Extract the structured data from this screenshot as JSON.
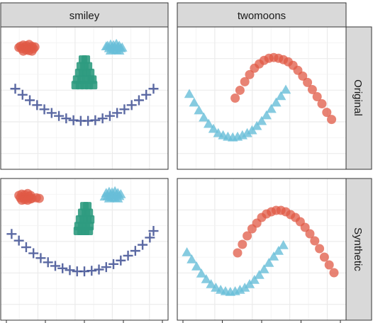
{
  "colors": {
    "strip_fill": "#d9d9d9",
    "cluster_red": "#e05a45",
    "cluster_blue": "#68bed8",
    "cluster_green": "#2f9b7f",
    "cluster_navy": "#3e4f93"
  },
  "facets": {
    "columns": [
      "smiley",
      "twomoons"
    ],
    "rows": [
      "Original",
      "Synthetic"
    ]
  },
  "chart_data": {
    "type": "scatter",
    "xlabel": "",
    "ylabel": "",
    "grid": true,
    "legend": "none",
    "panels": [
      {
        "column": "smiley",
        "row": "Original",
        "xlim": [
          -1.15,
          1.15
        ],
        "ylim": [
          -1.15,
          1.2
        ],
        "series": [
          {
            "color": "#e05a45",
            "shape": "circle",
            "group": "left eye",
            "x": [
              -0.88,
              -0.84,
              -0.8,
              -0.76,
              -0.72,
              -0.86,
              -0.82,
              -0.78,
              -0.74,
              -0.7,
              -0.84,
              -0.8,
              -0.76,
              -0.72,
              -0.9,
              -0.68
            ],
            "y": [
              0.88,
              0.9,
              0.89,
              0.91,
              0.88,
              0.84,
              0.86,
              0.85,
              0.86,
              0.84,
              0.8,
              0.82,
              0.81,
              0.8,
              0.86,
              0.87
            ]
          },
          {
            "color": "#68bed8",
            "shape": "triangle",
            "group": "right eye",
            "x": [
              0.32,
              0.36,
              0.4,
              0.44,
              0.48,
              0.34,
              0.38,
              0.42,
              0.46,
              0.5,
              0.36,
              0.4,
              0.44,
              0.48,
              0.3,
              0.52
            ],
            "y": [
              0.88,
              0.9,
              0.89,
              0.91,
              0.88,
              0.84,
              0.86,
              0.85,
              0.86,
              0.84,
              0.8,
              0.82,
              0.81,
              0.8,
              0.87,
              0.85
            ]
          },
          {
            "color": "#2f9b7f",
            "shape": "square",
            "group": "nose",
            "x": [
              -0.02,
              0.02,
              -0.05,
              0.0,
              0.05,
              -0.07,
              -0.02,
              0.03,
              0.08,
              -0.1,
              -0.04,
              0.02,
              0.08,
              0.11,
              -0.12,
              -0.06,
              0.0,
              0.06,
              0.12
            ],
            "y": [
              0.66,
              0.66,
              0.55,
              0.55,
              0.55,
              0.44,
              0.44,
              0.44,
              0.44,
              0.33,
              0.33,
              0.33,
              0.33,
              0.33,
              0.24,
              0.24,
              0.24,
              0.24,
              0.24
            ]
          },
          {
            "color": "#3e4f93",
            "shape": "plus",
            "group": "mouth",
            "x": [
              -0.95,
              -0.85,
              -0.75,
              -0.65,
              -0.55,
              -0.45,
              -0.35,
              -0.25,
              -0.15,
              -0.05,
              0.05,
              0.15,
              0.25,
              0.35,
              0.45,
              0.55,
              0.65,
              0.75,
              0.85,
              0.95
            ],
            "y": [
              0.18,
              0.08,
              -0.01,
              -0.09,
              -0.16,
              -0.22,
              -0.27,
              -0.31,
              -0.34,
              -0.35,
              -0.35,
              -0.34,
              -0.31,
              -0.27,
              -0.22,
              -0.16,
              -0.09,
              -0.01,
              0.08,
              0.18
            ]
          }
        ]
      },
      {
        "column": "twomoons",
        "row": "Original",
        "xlim": [
          -1.25,
          2.25
        ],
        "ylim": [
          -0.75,
          1.25
        ],
        "series": [
          {
            "color": "#e05a45",
            "shape": "circle",
            "group": "upper moon",
            "x": [
              -0.05,
              0.05,
              0.15,
              0.25,
              0.35,
              0.45,
              0.55,
              0.65,
              0.75,
              0.85,
              0.95,
              1.05,
              1.15,
              1.25,
              1.35,
              1.45,
              1.55,
              1.65,
              1.75,
              1.85,
              1.95
            ],
            "y": [
              0.25,
              0.36,
              0.48,
              0.58,
              0.67,
              0.73,
              0.78,
              0.81,
              0.82,
              0.81,
              0.79,
              0.76,
              0.71,
              0.64,
              0.56,
              0.47,
              0.37,
              0.27,
              0.17,
              0.05,
              -0.05
            ]
          },
          {
            "color": "#68bed8",
            "shape": "triangle",
            "group": "lower moon",
            "x": [
              -1.0,
              -0.9,
              -0.8,
              -0.7,
              -0.6,
              -0.5,
              -0.4,
              -0.3,
              -0.2,
              -0.1,
              0.0,
              0.1,
              0.2,
              0.3,
              0.4,
              0.5,
              0.6,
              0.7,
              0.8,
              0.9,
              1.0
            ],
            "y": [
              0.3,
              0.18,
              0.07,
              -0.03,
              -0.12,
              -0.19,
              -0.25,
              -0.28,
              -0.3,
              -0.31,
              -0.3,
              -0.28,
              -0.25,
              -0.21,
              -0.15,
              -0.08,
              0.0,
              0.09,
              0.18,
              0.27,
              0.36
            ]
          }
        ]
      },
      {
        "column": "smiley",
        "row": "Synthetic",
        "xlim": [
          -1.15,
          1.15
        ],
        "ylim": [
          -1.15,
          1.2
        ],
        "series": [
          {
            "color": "#e05a45",
            "shape": "circle",
            "group": "left eye",
            "x": [
              -0.9,
              -0.86,
              -0.82,
              -0.78,
              -0.74,
              -0.88,
              -0.84,
              -0.8,
              -0.76,
              -0.72,
              -0.86,
              -0.82,
              -0.78,
              -0.74,
              -0.66,
              -0.62
            ],
            "y": [
              0.92,
              0.94,
              0.93,
              0.95,
              0.92,
              0.88,
              0.89,
              0.88,
              0.9,
              0.87,
              0.84,
              0.85,
              0.84,
              0.86,
              0.88,
              0.87
            ]
          },
          {
            "color": "#68bed8",
            "shape": "triangle",
            "group": "right eye",
            "x": [
              0.3,
              0.34,
              0.38,
              0.42,
              0.46,
              0.32,
              0.36,
              0.4,
              0.44,
              0.48,
              0.34,
              0.38,
              0.42,
              0.46,
              0.28,
              0.5
            ],
            "y": [
              0.95,
              0.97,
              0.96,
              0.98,
              0.95,
              0.9,
              0.92,
              0.91,
              0.92,
              0.9,
              0.86,
              0.88,
              0.87,
              0.86,
              0.89,
              0.93
            ]
          },
          {
            "color": "#2f9b7f",
            "shape": "square",
            "group": "nose",
            "x": [
              0.0,
              0.04,
              -0.03,
              0.02,
              0.06,
              -0.06,
              -0.01,
              0.04,
              0.08,
              -0.08,
              -0.03,
              0.02,
              0.07,
              -0.09,
              -0.04,
              0.01,
              0.06
            ],
            "y": [
              0.74,
              0.74,
              0.63,
              0.63,
              0.63,
              0.52,
              0.52,
              0.52,
              0.52,
              0.41,
              0.41,
              0.41,
              0.41,
              0.33,
              0.33,
              0.33,
              0.33
            ]
          },
          {
            "color": "#3e4f93",
            "shape": "plus",
            "group": "mouth",
            "x": [
              -1.0,
              -0.9,
              -0.8,
              -0.7,
              -0.6,
              -0.5,
              -0.4,
              -0.3,
              -0.2,
              -0.1,
              0.0,
              0.1,
              0.2,
              0.3,
              0.4,
              0.5,
              0.6,
              0.7,
              0.8,
              0.9,
              0.95
            ],
            "y": [
              0.28,
              0.17,
              0.06,
              -0.04,
              -0.12,
              -0.19,
              -0.25,
              -0.29,
              -0.32,
              -0.34,
              -0.34,
              -0.33,
              -0.31,
              -0.27,
              -0.22,
              -0.16,
              -0.08,
              0.0,
              0.1,
              0.22,
              0.33
            ]
          }
        ]
      },
      {
        "column": "twomoons",
        "row": "Synthetic",
        "xlim": [
          -1.25,
          2.25
        ],
        "ylim": [
          -0.75,
          1.25
        ],
        "series": [
          {
            "color": "#e05a45",
            "shape": "circle",
            "group": "upper moon",
            "x": [
              0.0,
              0.1,
              0.2,
              0.3,
              0.4,
              0.5,
              0.6,
              0.7,
              0.8,
              0.9,
              1.0,
              1.1,
              1.2,
              1.3,
              1.4,
              1.5,
              1.6,
              1.7,
              1.8,
              1.9,
              2.0
            ],
            "y": [
              0.2,
              0.32,
              0.44,
              0.54,
              0.62,
              0.7,
              0.75,
              0.78,
              0.8,
              0.8,
              0.78,
              0.74,
              0.7,
              0.64,
              0.56,
              0.47,
              0.37,
              0.26,
              0.14,
              0.03,
              -0.08
            ]
          },
          {
            "color": "#68bed8",
            "shape": "triangle",
            "group": "lower moon",
            "x": [
              -1.05,
              -0.95,
              -0.85,
              -0.75,
              -0.65,
              -0.55,
              -0.45,
              -0.35,
              -0.25,
              -0.15,
              -0.05,
              0.05,
              0.15,
              0.25,
              0.35,
              0.45,
              0.55,
              0.65,
              0.75,
              0.85,
              0.95
            ],
            "y": [
              0.2,
              0.1,
              0.0,
              -0.1,
              -0.18,
              -0.25,
              -0.3,
              -0.33,
              -0.35,
              -0.36,
              -0.35,
              -0.33,
              -0.3,
              -0.25,
              -0.19,
              -0.12,
              -0.04,
              0.05,
              0.14,
              0.22,
              0.3
            ]
          }
        ]
      }
    ]
  }
}
